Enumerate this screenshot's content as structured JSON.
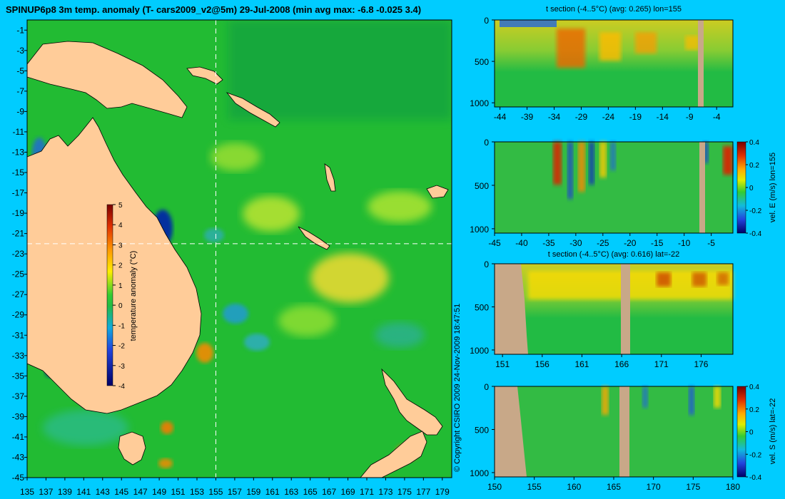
{
  "page": {
    "title": "SPINUP6p8 3m temp. anomaly (T- cars2009_v2@5m) 29-Jul-2008 (min avg max: -6.8 -0.025 3.4)",
    "copyright": "© Copyright CSIRO 2009    24-Nov-2009 18:47:51",
    "background_color": "#00ccff"
  },
  "chart_data": [
    {
      "id": "map",
      "type": "heatmap",
      "x_ticks": [
        "135",
        "137",
        "139",
        "141",
        "143",
        "145",
        "147",
        "149",
        "151",
        "153",
        "155",
        "157",
        "159",
        "161",
        "163",
        "165",
        "167",
        "169",
        "171",
        "173",
        "175",
        "177",
        "179"
      ],
      "y_ticks": [
        "-1",
        "-3",
        "-5",
        "-7",
        "-9",
        "-11",
        "-13",
        "-15",
        "-17",
        "-19",
        "-21",
        "-23",
        "-25",
        "-27",
        "-29",
        "-31",
        "-33",
        "-35",
        "-37",
        "-39",
        "-41",
        "-43",
        "-45"
      ],
      "xlim": [
        135,
        180
      ],
      "ylim": [
        -45,
        0
      ],
      "crosshair": {
        "lon": 155,
        "lat": -22
      },
      "colorbar": {
        "label": "temperature anomaly (°C)",
        "ticks": [
          "5",
          "4",
          "3",
          "2",
          "1",
          "0",
          "-1",
          "-2",
          "-3",
          "-4"
        ],
        "range": [
          -4,
          5
        ]
      },
      "colors": {
        "land": "#ffcc99",
        "ocean_base": "#22bb33",
        "warm": "#ffdd22",
        "cool": "#22aadd"
      }
    },
    {
      "id": "panel-1",
      "type": "heatmap",
      "title": "t section (-4..5°C) (avg: 0.265) lon=155",
      "x_ticks": [
        "-44",
        "-39",
        "-34",
        "-29",
        "-24",
        "-19",
        "-14",
        "-9",
        "-4"
      ],
      "y_ticks": [
        "0",
        "500",
        "1000"
      ],
      "xlim": [
        -45,
        -1
      ],
      "ylim": [
        1050,
        0
      ],
      "ylabel": "",
      "colorbar": null
    },
    {
      "id": "panel-2",
      "type": "heatmap",
      "title": "",
      "x_ticks": [
        "-45",
        "-40",
        "-35",
        "-30",
        "-25",
        "-20",
        "-15",
        "-10",
        "-5"
      ],
      "y_ticks": [
        "0",
        "500",
        "1000"
      ],
      "xlim": [
        -45,
        -1
      ],
      "ylim": [
        1050,
        0
      ],
      "ylabel": "vel. E (m/s) lon=155",
      "colorbar": {
        "ticks": [
          "0.4",
          "0.2",
          "0",
          "-0.2",
          "-0.4"
        ],
        "range": [
          -0.4,
          0.4
        ]
      }
    },
    {
      "id": "panel-3",
      "type": "heatmap",
      "title": "t section (-4..5°C) (avg: 0.616) lat=-22",
      "x_ticks": [
        "151",
        "156",
        "161",
        "166",
        "171",
        "176"
      ],
      "y_ticks": [
        "0",
        "500",
        "1000"
      ],
      "xlim": [
        150,
        180
      ],
      "ylim": [
        1050,
        0
      ],
      "ylabel": "",
      "colorbar": null
    },
    {
      "id": "panel-4",
      "type": "heatmap",
      "title": "",
      "x_ticks": [
        "150",
        "155",
        "160",
        "165",
        "170",
        "175",
        "180"
      ],
      "y_ticks": [
        "0",
        "500",
        "1000"
      ],
      "xlim": [
        150,
        180
      ],
      "ylim": [
        1050,
        0
      ],
      "ylabel": "vel. S (m/s) lat=-22",
      "colorbar": {
        "ticks": [
          "0.4",
          "0.2",
          "0",
          "-0.2",
          "-0.4"
        ],
        "range": [
          -0.4,
          0.4
        ]
      }
    }
  ]
}
